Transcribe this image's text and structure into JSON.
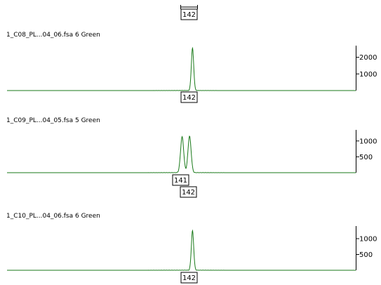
{
  "header": {
    "bin_marker": "142"
  },
  "chart_data": [
    {
      "type": "line",
      "title": "1_C08_PL...04_06.fsa 6 Green",
      "series": [
        {
          "name": "",
          "color": "#1a7a1a"
        }
      ],
      "peaks": [
        {
          "x": 142,
          "height": 2550,
          "width": 0.45
        }
      ],
      "ylim": [
        0,
        2700
      ],
      "yticks": [
        {
          "value": 2000,
          "label": "2000"
        },
        {
          "value": 1000,
          "label": "1000"
        }
      ],
      "alleles": [
        "142"
      ]
    },
    {
      "type": "line",
      "title": "1_C09_PL...04_05.fsa 5 Green",
      "series": [
        {
          "name": "",
          "color": "#1a7a1a"
        }
      ],
      "peaks": [
        {
          "x": 140.6,
          "height": 1130,
          "width": 0.6
        },
        {
          "x": 141.6,
          "height": 1150,
          "width": 0.6
        }
      ],
      "ylim": [
        0,
        1350
      ],
      "yticks": [
        {
          "value": 1000,
          "label": "1000"
        },
        {
          "value": 500,
          "label": "500"
        }
      ],
      "alleles": [
        "141",
        "142"
      ]
    },
    {
      "type": "line",
      "title": "1_C10_PL...04_06.fsa 6 Green",
      "series": [
        {
          "name": "",
          "color": "#1a7a1a"
        }
      ],
      "peaks": [
        {
          "x": 142,
          "height": 1250,
          "width": 0.45
        }
      ],
      "ylim": [
        0,
        1400
      ],
      "yticks": [
        {
          "value": 1000,
          "label": "1000"
        },
        {
          "value": 500,
          "label": "500"
        }
      ],
      "alleles": [
        "142"
      ]
    }
  ]
}
